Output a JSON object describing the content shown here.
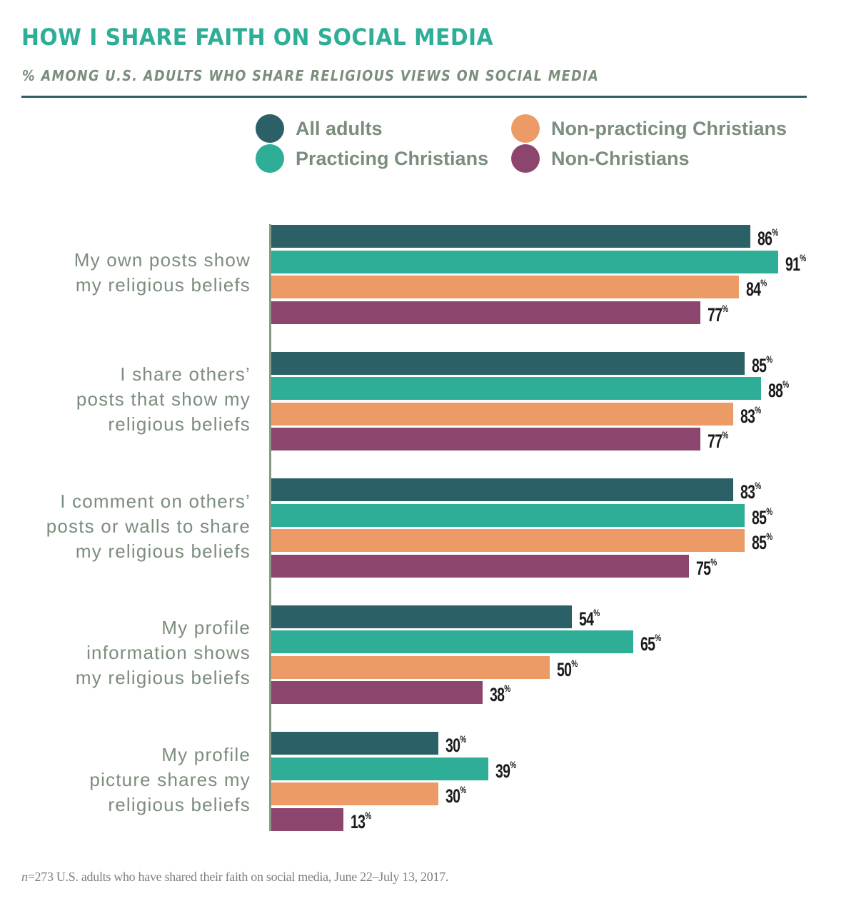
{
  "chart_data": {
    "type": "bar",
    "orientation": "horizontal",
    "title": "HOW I SHARE FAITH ON SOCIAL MEDIA",
    "subtitle": "% AMONG U.S. ADULTS WHO SHARE RELIGIOUS VIEWS ON SOCIAL MEDIA",
    "xlabel": "",
    "ylabel": "",
    "xlim": [
      0,
      100
    ],
    "grid": false,
    "legend_position": "top-right",
    "value_suffix": "%",
    "categories": [
      "My own posts show\nmy religious beliefs",
      "I share others’\nposts that show my\nreligious beliefs",
      "I comment on others’\nposts or walls to share\nmy religious beliefs",
      "My profile\ninformation shows\nmy religious beliefs",
      "My profile\npicture shares my\nreligious beliefs"
    ],
    "series": [
      {
        "name": "All adults",
        "color": "#2b6066",
        "values": [
          86,
          85,
          83,
          54,
          30
        ]
      },
      {
        "name": "Practicing Christians",
        "color": "#2eae96",
        "values": [
          91,
          88,
          85,
          65,
          39
        ]
      },
      {
        "name": "Non-practicing Christians",
        "color": "#ec9b66",
        "values": [
          84,
          83,
          85,
          50,
          30
        ]
      },
      {
        "name": "Non-Christians",
        "color": "#8c466e",
        "values": [
          77,
          77,
          75,
          38,
          13
        ]
      }
    ],
    "footnote": {
      "n_label": "n",
      "text": "=273 U.S. adults who have shared their faith on social media, June 22–July 13, 2017."
    }
  },
  "legend": [
    {
      "label": "All adults",
      "color": "#2b6066"
    },
    {
      "label": "Non-practicing Christians",
      "color": "#ec9b66"
    },
    {
      "label": "Practicing Christians",
      "color": "#2eae96"
    },
    {
      "label": "Non-Christians",
      "color": "#8c466e"
    }
  ]
}
